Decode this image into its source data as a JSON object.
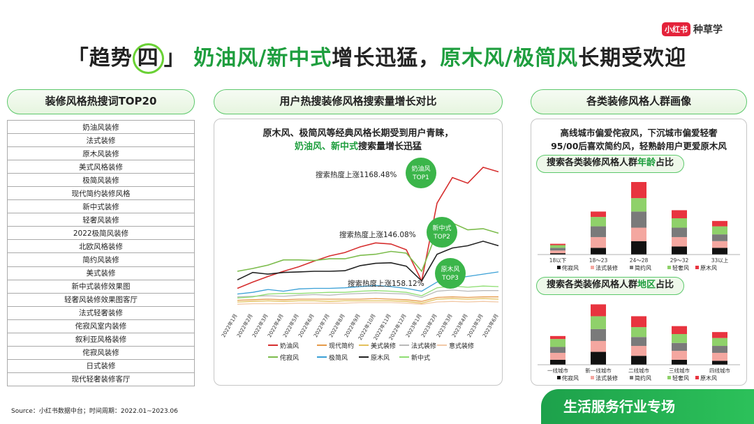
{
  "brand": {
    "logo": "小红书",
    "name": "种草学"
  },
  "headline": {
    "bracket_open": "「",
    "prefix": "趋势",
    "circled": "四",
    "bracket_close": "」",
    "green1": "奶油风/新中式",
    "text1": "增长迅猛，",
    "green2": "原木风/极简风",
    "text2": "长期受欢迎"
  },
  "sections": {
    "left": "装修风格热搜词TOP20",
    "middle": "用户热搜装修风格搜索量增长对比",
    "right": "各类装修风格人群画像"
  },
  "keywords": [
    "奶油风装修",
    "法式装修",
    "原木风装修",
    "美式风格装修",
    "极简风装修",
    "现代简约装修风格",
    "新中式装修",
    "轻奢风装修",
    "2022极简风装修",
    "北欧风格装修",
    "简约风装修",
    "美式装修",
    "新中式装修效果图",
    "轻奢风装修效果图客厅",
    "法式轻奢装修",
    "侘寂风室内装修",
    "叙利亚风格装修",
    "侘寂风装修",
    "日式装修",
    "现代轻奢装修客厅"
  ],
  "middle": {
    "line1": "原木风、极简风等经典风格长期受到用户青睐，",
    "line2_green": "奶油风、新中式",
    "line2_rest": "搜索量增长迅猛"
  },
  "right": {
    "line1": "高线城市偏爱侘寂风，下沉城市偏爱轻奢",
    "line2": "95/00后喜欢简约风，轻熟龄用户更爱原木风",
    "age_title_pre": "搜索各类装修风格人群",
    "age_title_green": "年龄",
    "age_title_post": "占比",
    "region_title_pre": "搜索各类装修风格人群",
    "region_title_green": "地区",
    "region_title_post": "占比"
  },
  "source": "Source：小红书数据中台；时间周期：2022.01~2023.06",
  "banner": "生活服务行业专场",
  "colors": {
    "green": "#1e9e3e",
    "accent": "#6ad135",
    "red": "#e4223a"
  },
  "chart_data": [
    {
      "type": "line",
      "x": [
        "2022年1月",
        "2022年2月",
        "2022年3月",
        "2022年4月",
        "2022年5月",
        "2022年6月",
        "2022年7月",
        "2022年8月",
        "2022年9月",
        "2022年10月",
        "2022年11月",
        "2022年12月",
        "2023年1月",
        "2023年2月",
        "2023年3月",
        "2023年4月",
        "2023年5月",
        "2023年6月"
      ],
      "series": [
        {
          "name": "奶油风",
          "color": "#d62f2f",
          "values": [
            3.5,
            4.6,
            5.6,
            6.5,
            7.3,
            8.3,
            9.2,
            9.8,
            10.8,
            11.5,
            11.3,
            10.3,
            4.8,
            18.5,
            23,
            22,
            24.8,
            24
          ]
        },
        {
          "name": "现代简约",
          "color": "#e59a4a",
          "values": [
            1.4,
            1.5,
            1.6,
            1.5,
            1.6,
            1.6,
            1.6,
            1.6,
            1.6,
            1.7,
            1.6,
            1.5,
            1.2,
            1.9,
            2.0,
            1.9,
            2.0,
            2.0
          ]
        },
        {
          "name": "美式装修",
          "color": "#e3c15c",
          "values": [
            1.1,
            1.2,
            1.3,
            1.2,
            1.3,
            1.3,
            1.2,
            1.3,
            1.3,
            1.3,
            1.3,
            1.2,
            0.9,
            1.6,
            1.7,
            1.6,
            1.7,
            1.6
          ]
        },
        {
          "name": "法式装修",
          "color": "#b9b9b9",
          "values": [
            2.0,
            2.1,
            2.2,
            2.1,
            2.3,
            2.4,
            2.3,
            2.5,
            2.6,
            2.7,
            2.6,
            2.5,
            1.9,
            3.0,
            3.2,
            3.0,
            3.1,
            3.1
          ]
        },
        {
          "name": "意式装修",
          "color": "#f2c9a7",
          "values": [
            0.7,
            0.8,
            0.8,
            0.8,
            0.9,
            0.9,
            0.9,
            0.9,
            1.0,
            1.0,
            1.0,
            0.9,
            0.7,
            1.1,
            1.2,
            1.1,
            1.2,
            1.1
          ]
        },
        {
          "name": "侘寂风",
          "color": "#7cbc4c",
          "values": [
            6.5,
            7.0,
            7.6,
            8.5,
            8.5,
            8.4,
            8.7,
            8.7,
            9.3,
            9.5,
            10.0,
            9.7,
            6.5,
            13.5,
            15,
            13.8,
            14.0,
            13.2
          ]
        },
        {
          "name": "极简风",
          "color": "#3aa0d6",
          "values": [
            2.5,
            2.8,
            3.3,
            3.0,
            3.4,
            3.5,
            3.5,
            3.6,
            3.8,
            4.0,
            3.8,
            3.5,
            3.0,
            4.6,
            5.2,
            5.6,
            6.0,
            6.4
          ]
        },
        {
          "name": "原木风",
          "color": "#222222",
          "values": [
            5.0,
            6.3,
            6.0,
            6.3,
            6.4,
            6.5,
            6.5,
            6.6,
            7.5,
            7.9,
            8.0,
            7.4,
            4.8,
            9.5,
            10.6,
            11.0,
            11.8,
            11.0
          ]
        },
        {
          "name": "新中式",
          "color": "#8ede72",
          "values": [
            1.8,
            2.0,
            2.5,
            2.6,
            2.6,
            2.7,
            2.8,
            2.8,
            3.0,
            3.1,
            3.0,
            2.8,
            2.2,
            3.6,
            3.9,
            3.7,
            3.9,
            3.8
          ]
        }
      ],
      "annotations": [
        "搜索热度上涨1168.48%",
        "搜索热度上涨146.08%",
        "搜索热度上涨158.12%"
      ],
      "callouts": [
        {
          "line1": "奶油风",
          "line2": "TOP1"
        },
        {
          "line1": "新中式",
          "line2": "TOP2"
        },
        {
          "line1": "原木风",
          "line2": "TOP3"
        }
      ],
      "ylim": [
        0,
        27
      ]
    },
    {
      "type": "bar",
      "stacked": true,
      "categories": [
        "18以下",
        "18～23",
        "24～28",
        "29～32",
        "33以上"
      ],
      "series": [
        {
          "name": "侘寂风",
          "color": "#111111",
          "values": [
            1,
            5,
            10,
            6,
            5
          ]
        },
        {
          "name": "法式装修",
          "color": "#f4a7a0",
          "values": [
            2,
            8,
            10,
            7,
            5
          ]
        },
        {
          "name": "简约风",
          "color": "#7a7a7a",
          "values": [
            2,
            8,
            12,
            7,
            5
          ]
        },
        {
          "name": "轻奢风",
          "color": "#8fd16a",
          "values": [
            2,
            7,
            10,
            7,
            6
          ]
        },
        {
          "name": "原木风",
          "color": "#e8343f",
          "values": [
            1,
            4,
            12,
            6,
            4
          ]
        }
      ]
    },
    {
      "type": "bar",
      "stacked": true,
      "categories": [
        "一线城市",
        "新一线城市",
        "二线城市",
        "三线城市",
        "四线城市"
      ],
      "series": [
        {
          "name": "侘寂风",
          "color": "#111111",
          "values": [
            5,
            13,
            9,
            5,
            4
          ]
        },
        {
          "name": "法式装修",
          "color": "#f4a7a0",
          "values": [
            7,
            11,
            10,
            9,
            8
          ]
        },
        {
          "name": "简约风",
          "color": "#7a7a7a",
          "values": [
            6,
            12,
            9,
            8,
            7
          ]
        },
        {
          "name": "轻奢风",
          "color": "#8fd16a",
          "values": [
            8,
            13,
            10,
            9,
            8
          ]
        },
        {
          "name": "原木风",
          "color": "#e8343f",
          "values": [
            3,
            12,
            11,
            8,
            6
          ]
        }
      ]
    }
  ]
}
